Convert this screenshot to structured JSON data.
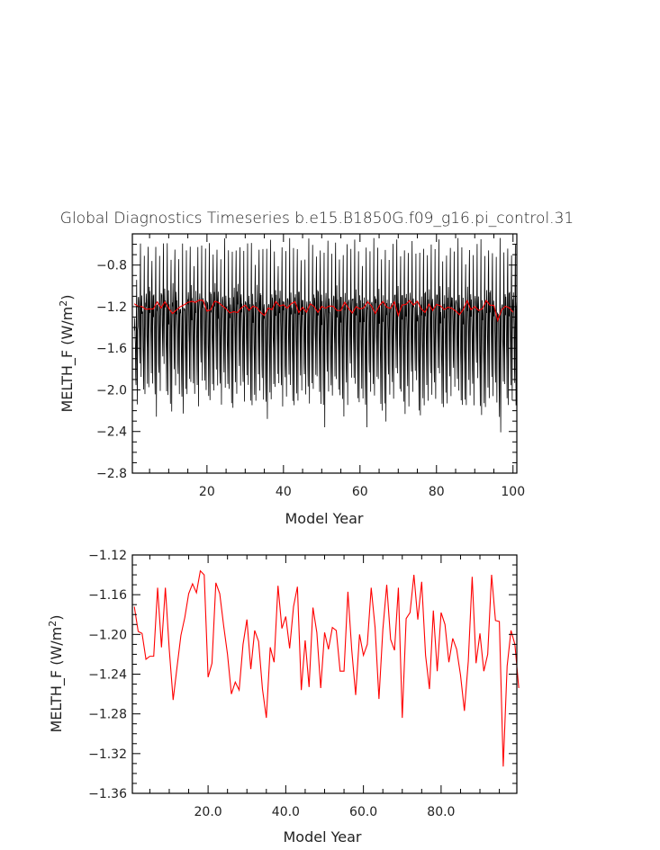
{
  "figure": {
    "title": "Global Diagnostics Timeseries b.e15.B1850G.f09_g16.pi_control.31"
  },
  "colors": {
    "monthly": "#000000",
    "annual": "#ff0000",
    "axis": "#000000"
  },
  "chart_data": [
    {
      "type": "line",
      "xlabel": "Model Year",
      "ylabel": "MELTH_F (W/m²)",
      "ylabel_main": "MELTH_F (W/m",
      "ylabel_sup": "2",
      "ylabel_tail": ")",
      "xlim": [
        0.5,
        101
      ],
      "ylim": [
        -2.8,
        -0.5
      ],
      "xticks": [
        20,
        40,
        60,
        80,
        100
      ],
      "xtick_labels": [
        "20",
        "40",
        "60",
        "80",
        "100"
      ],
      "yticks": [
        -2.8,
        -2.4,
        -2.0,
        -1.6,
        -1.2,
        -0.8
      ],
      "ytick_labels": [
        "−2.8",
        "−2.4",
        "−2.0",
        "−1.6",
        "−1.2",
        "−0.8"
      ],
      "series": [
        {
          "role": "monthly",
          "x_start": 1.04,
          "x_step": 0.0833333,
          "seasonal_cycle": [
            -1.15,
            -1.05,
            -1.15,
            -1.35,
            -1.55,
            -1.75,
            -0.95,
            -0.65,
            -1.35,
            -1.85,
            -1.2,
            -1.05
          ],
          "annual_min": [
            -2.1,
            -1.9,
            -2.1,
            -2.0,
            -1.9,
            -2.2,
            -2.0,
            -1.8,
            -2.1,
            -2.2,
            -1.9,
            -2.0,
            -2.25,
            -2.1,
            -1.95,
            -2.0,
            -2.1,
            -1.9,
            -2.05,
            -2.15,
            -2.0,
            -1.9,
            -2.1,
            -2.0,
            -2.05,
            -2.2,
            -2.0,
            -1.9,
            -2.1,
            -2.0,
            -2.2,
            -2.1,
            -1.95,
            -2.05,
            -2.3,
            -2.15,
            -2.0,
            -1.9,
            -2.1,
            -2.05,
            -2.0,
            -2.2,
            -2.1,
            -1.95,
            -2.0,
            -2.15,
            -2.05,
            -1.9,
            -2.1,
            -2.3,
            -2.0,
            -2.1,
            -1.95,
            -2.05,
            -2.2,
            -2.1,
            -1.9,
            -2.0,
            -2.15,
            -2.05,
            -2.3,
            -2.0,
            -2.1,
            -1.95,
            -2.2,
            -2.25,
            -2.0,
            -2.1,
            -1.9,
            -2.05,
            -2.2,
            -2.1,
            -2.0,
            -1.95,
            -2.3,
            -2.15,
            -2.05,
            -2.0,
            -2.1,
            -1.9,
            -2.2,
            -2.1,
            -2.0,
            -1.95,
            -2.05,
            -2.2,
            -2.15,
            -2.0,
            -2.1,
            -1.9,
            -2.3,
            -2.2,
            -2.05,
            -2.0,
            -2.1,
            -2.45,
            -2.0,
            -2.15,
            -2.05,
            -2.1
          ],
          "annual_max": [
            -0.95,
            -0.65,
            -0.75,
            -0.6,
            -0.7,
            -0.6,
            -0.75,
            -0.65,
            -0.6,
            -0.7,
            -0.6,
            -0.75,
            -0.65,
            -0.7,
            -0.6,
            -0.75,
            -0.6,
            -0.65,
            -0.7,
            -0.6,
            -0.65,
            -0.6,
            -0.75,
            -0.6,
            -0.7,
            -0.65,
            -0.6,
            -0.6,
            -0.7,
            -0.65,
            -0.6,
            -0.75,
            -0.6,
            -0.65,
            -0.7,
            -0.6,
            -0.65,
            -0.75,
            -0.6,
            -0.7,
            -0.6,
            -0.65,
            -0.6,
            -0.7,
            -0.75,
            -0.6,
            -0.65,
            -0.7,
            -0.6,
            -0.65,
            -0.6,
            -0.75,
            -0.6,
            -0.7,
            -0.65,
            -0.6,
            -0.7,
            -0.6,
            -0.65,
            -0.75,
            -0.6,
            -0.7,
            -0.6,
            -0.65,
            -0.7,
            -0.6,
            -0.75,
            -0.65,
            -0.6,
            -0.7,
            -0.6,
            -0.65,
            -0.6,
            -0.75,
            -0.7,
            -0.6,
            -0.65,
            -0.6,
            -0.7,
            -0.6,
            -0.75,
            -0.65,
            -0.6,
            -0.7,
            -0.6,
            -0.65,
            -0.75,
            -0.6,
            -0.7,
            -0.65,
            -0.6,
            -0.7,
            -0.6,
            -0.65,
            -0.75,
            -0.6,
            -0.7,
            -0.6,
            -0.65,
            -0.6
          ]
        },
        {
          "role": "annual",
          "ref": "annual"
        }
      ]
    },
    {
      "type": "line",
      "xlabel": "Model Year",
      "ylabel": "MELTH_F (W/m²)",
      "ylabel_main": "MELTH_F (W/m",
      "ylabel_sup": "2",
      "ylabel_tail": ")",
      "xlim": [
        0.5,
        99.5
      ],
      "ylim": [
        -1.36,
        -1.12
      ],
      "xticks": [
        20,
        40,
        60,
        80
      ],
      "xtick_labels": [
        "20.0",
        "40.0",
        "60.0",
        "80.0"
      ],
      "yticks": [
        -1.36,
        -1.32,
        -1.28,
        -1.24,
        -1.2,
        -1.16,
        -1.12
      ],
      "ytick_labels": [
        "−1.36",
        "−1.32",
        "−1.28",
        "−1.24",
        "−1.20",
        "−1.16",
        "−1.12"
      ],
      "series": [
        {
          "role": "annual",
          "ref": "annual"
        }
      ]
    }
  ],
  "annual": {
    "x_start": 1,
    "values": [
      -1.172,
      -1.197,
      -1.199,
      -1.225,
      -1.222,
      -1.222,
      -1.153,
      -1.213,
      -1.153,
      -1.215,
      -1.266,
      -1.233,
      -1.201,
      -1.183,
      -1.159,
      -1.149,
      -1.158,
      -1.136,
      -1.14,
      -1.243,
      -1.229,
      -1.148,
      -1.159,
      -1.191,
      -1.22,
      -1.26,
      -1.248,
      -1.256,
      -1.21,
      -1.185,
      -1.235,
      -1.196,
      -1.207,
      -1.255,
      -1.284,
      -1.213,
      -1.228,
      -1.151,
      -1.194,
      -1.182,
      -1.214,
      -1.172,
      -1.152,
      -1.256,
      -1.206,
      -1.253,
      -1.173,
      -1.198,
      -1.254,
      -1.198,
      -1.215,
      -1.193,
      -1.196,
      -1.237,
      -1.237,
      -1.157,
      -1.216,
      -1.261,
      -1.2,
      -1.221,
      -1.21,
      -1.153,
      -1.193,
      -1.265,
      -1.195,
      -1.15,
      -1.205,
      -1.216,
      -1.153,
      -1.284,
      -1.184,
      -1.178,
      -1.14,
      -1.185,
      -1.147,
      -1.221,
      -1.255,
      -1.176,
      -1.237,
      -1.178,
      -1.19,
      -1.228,
      -1.204,
      -1.215,
      -1.241,
      -1.277,
      -1.227,
      -1.142,
      -1.229,
      -1.199,
      -1.237,
      -1.22,
      -1.14,
      -1.186,
      -1.187,
      -1.333,
      -1.232,
      -1.196,
      -1.21,
      -1.254
    ]
  }
}
